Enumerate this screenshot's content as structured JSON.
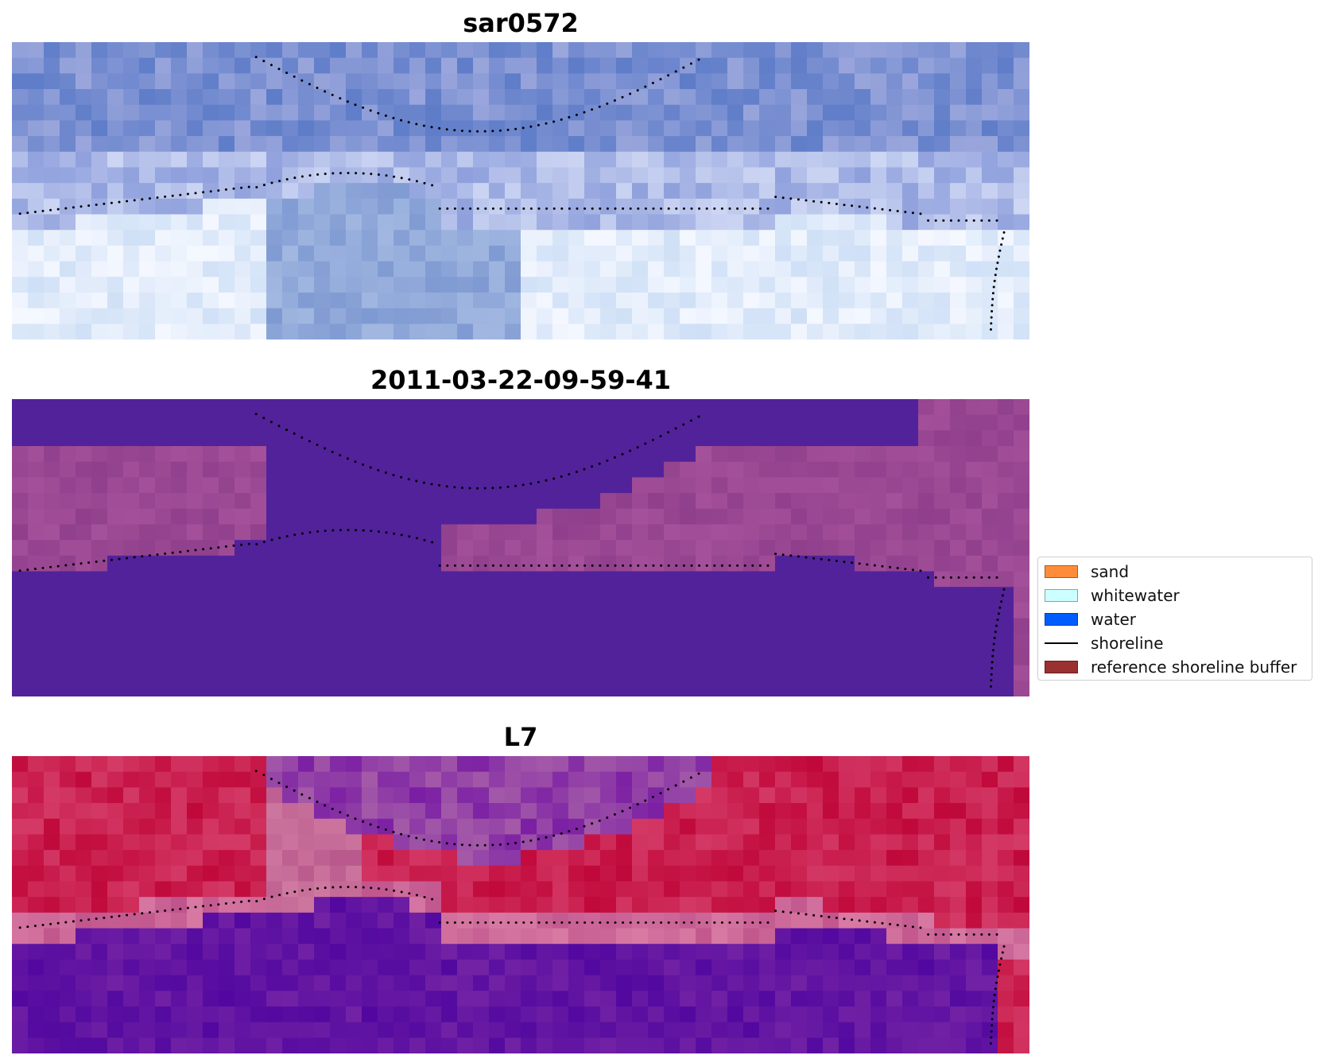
{
  "panels": [
    {
      "key": "rgb",
      "title": "sar0572"
    },
    {
      "key": "classified",
      "title": "2011-03-22-09-59-41"
    },
    {
      "key": "ndwi",
      "title": "L7"
    }
  ],
  "legend": {
    "items": [
      {
        "label": "sand",
        "color": "#ff8c3a",
        "kind": "patch"
      },
      {
        "label": "whitewater",
        "color": "#ccffff",
        "kind": "patch"
      },
      {
        "label": "water",
        "color": "#005cff",
        "kind": "patch"
      },
      {
        "label": "shoreline",
        "color": "#000000",
        "kind": "line"
      },
      {
        "label": "reference shoreline buffer",
        "color": "#9a3030",
        "kind": "patch"
      }
    ]
  },
  "colors": {
    "classified_water": "#52229a",
    "classified_land": "#9a4890",
    "ndwi_high": "#5a0aa0",
    "ndwi_low": "#c00838",
    "rgb_sky": "#5a7cc8",
    "rgb_white": "#eef2ff",
    "shoreline_dots": "#000000"
  }
}
